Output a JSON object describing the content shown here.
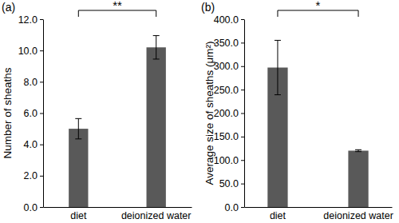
{
  "chart_data": [
    {
      "type": "bar",
      "title": "(a)",
      "y_label": "Number of sheaths",
      "categories": [
        "diet",
        "deionized water"
      ],
      "values": [
        5.0,
        10.2
      ],
      "errors": [
        0.65,
        0.75
      ],
      "color": "#595959",
      "annotations": [
        "**"
      ],
      "ylim": [
        0,
        12
      ],
      "yticks": [
        {
          "value": 0,
          "label": "0.0"
        },
        {
          "value": 2,
          "label": "2.0"
        },
        {
          "value": 4,
          "label": "4.0"
        },
        {
          "value": 6,
          "label": "6.0"
        },
        {
          "value": 8,
          "label": "8.0"
        },
        {
          "value": 10,
          "label": "10.0"
        },
        {
          "value": 12,
          "label": "12.0"
        }
      ],
      "grid": false
    },
    {
      "type": "bar",
      "title": "(b)",
      "y_label": "Average size of sheaths (μm²)",
      "categories": [
        "diet",
        "deionized water"
      ],
      "values": [
        297,
        120
      ],
      "errors": [
        58,
        2
      ],
      "color": "#595959",
      "annotations": [
        "*"
      ],
      "ylim": [
        0,
        400
      ],
      "yticks": [
        {
          "value": 0,
          "label": "0.0"
        },
        {
          "value": 50,
          "label": "50.0"
        },
        {
          "value": 100,
          "label": "100.0"
        },
        {
          "value": 150,
          "label": "150.0"
        },
        {
          "value": 200,
          "label": "200.0"
        },
        {
          "value": 250,
          "label": "250.0"
        },
        {
          "value": 300,
          "label": "300.0"
        },
        {
          "value": 350,
          "label": "350.0"
        },
        {
          "value": 400,
          "label": "400.0"
        }
      ],
      "grid": false
    }
  ]
}
